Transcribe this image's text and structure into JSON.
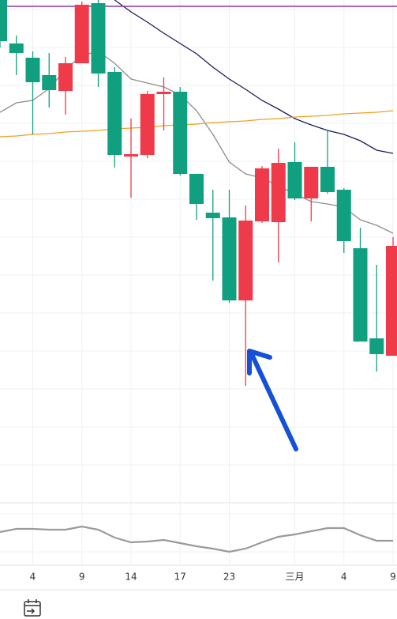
{
  "chart_data": [
    {
      "type": "candlestick",
      "categories": [
        null,
        null,
        "4",
        null,
        null,
        "9",
        null,
        null,
        "14",
        null,
        null,
        "17",
        null,
        null,
        "23",
        null,
        null,
        null,
        "三月",
        null,
        null,
        "4",
        null,
        null,
        "9"
      ],
      "open": [
        583,
        568,
        531,
        521,
        555,
        629,
        542,
        439,
        440,
        516,
        519,
        415,
        377,
        359,
        255,
        356,
        422,
        429,
        384,
        424,
        392,
        330,
        203,
        187,
        324
      ],
      "high": [
        635,
        590,
        570,
        568,
        563,
        633,
        635,
        550,
        485,
        520,
        537,
        525,
        415,
        395,
        395,
        375,
        425,
        447,
        455,
        424,
        470,
        397,
        347,
        300,
        335
      ],
      "low": [
        575,
        540,
        465,
        499,
        490,
        555,
        525,
        423,
        385,
        435,
        470,
        413,
        357,
        280,
        252,
        147,
        353,
        303,
        382,
        355,
        390,
        315,
        203,
        165,
        185
      ],
      "close": [
        635,
        580,
        562,
        540,
        520,
        555,
        631,
        544,
        437,
        439,
        516,
        519,
        415,
        366,
        360,
        255,
        355,
        354,
        430,
        384,
        424,
        395,
        321,
        207,
        185
      ],
      "up_color": "#10a07f",
      "down_color": "#ef3a4a",
      "level": 627,
      "level_color": "#8a3ab0",
      "overlays": [
        {
          "color": "#1c1a5e",
          "values": [
            null,
            null,
            null,
            null,
            null,
            null,
            null,
            635,
            620,
            607,
            593,
            580,
            567,
            550,
            535,
            522,
            508,
            497,
            485,
            477,
            470,
            465,
            457,
            445,
            441
          ]
        },
        {
          "color": "#8e8e8e",
          "values": [
            493,
            505,
            508,
            523,
            547,
            565,
            570,
            555,
            535,
            530,
            525,
            515,
            495,
            465,
            430,
            415,
            410,
            400,
            390,
            380,
            377,
            373,
            357,
            350,
            340
          ]
        },
        {
          "color": "#f0a020",
          "values": [
            462,
            463,
            465,
            466,
            468,
            469,
            470,
            472,
            473,
            474,
            476,
            477,
            478,
            480,
            481,
            482,
            484,
            485,
            487,
            488,
            489,
            491,
            492,
            493,
            495
          ]
        }
      ],
      "ylim": [
        0,
        635
      ]
    },
    {
      "type": "line",
      "color": "#9a9a9a",
      "values": [
        42,
        46,
        46,
        45,
        45,
        49,
        45,
        35,
        29,
        30,
        32,
        28,
        24,
        21,
        17,
        21,
        29,
        36,
        39,
        43,
        47,
        47,
        38,
        31,
        31
      ],
      "ylim": [
        0,
        75
      ]
    }
  ]
}
